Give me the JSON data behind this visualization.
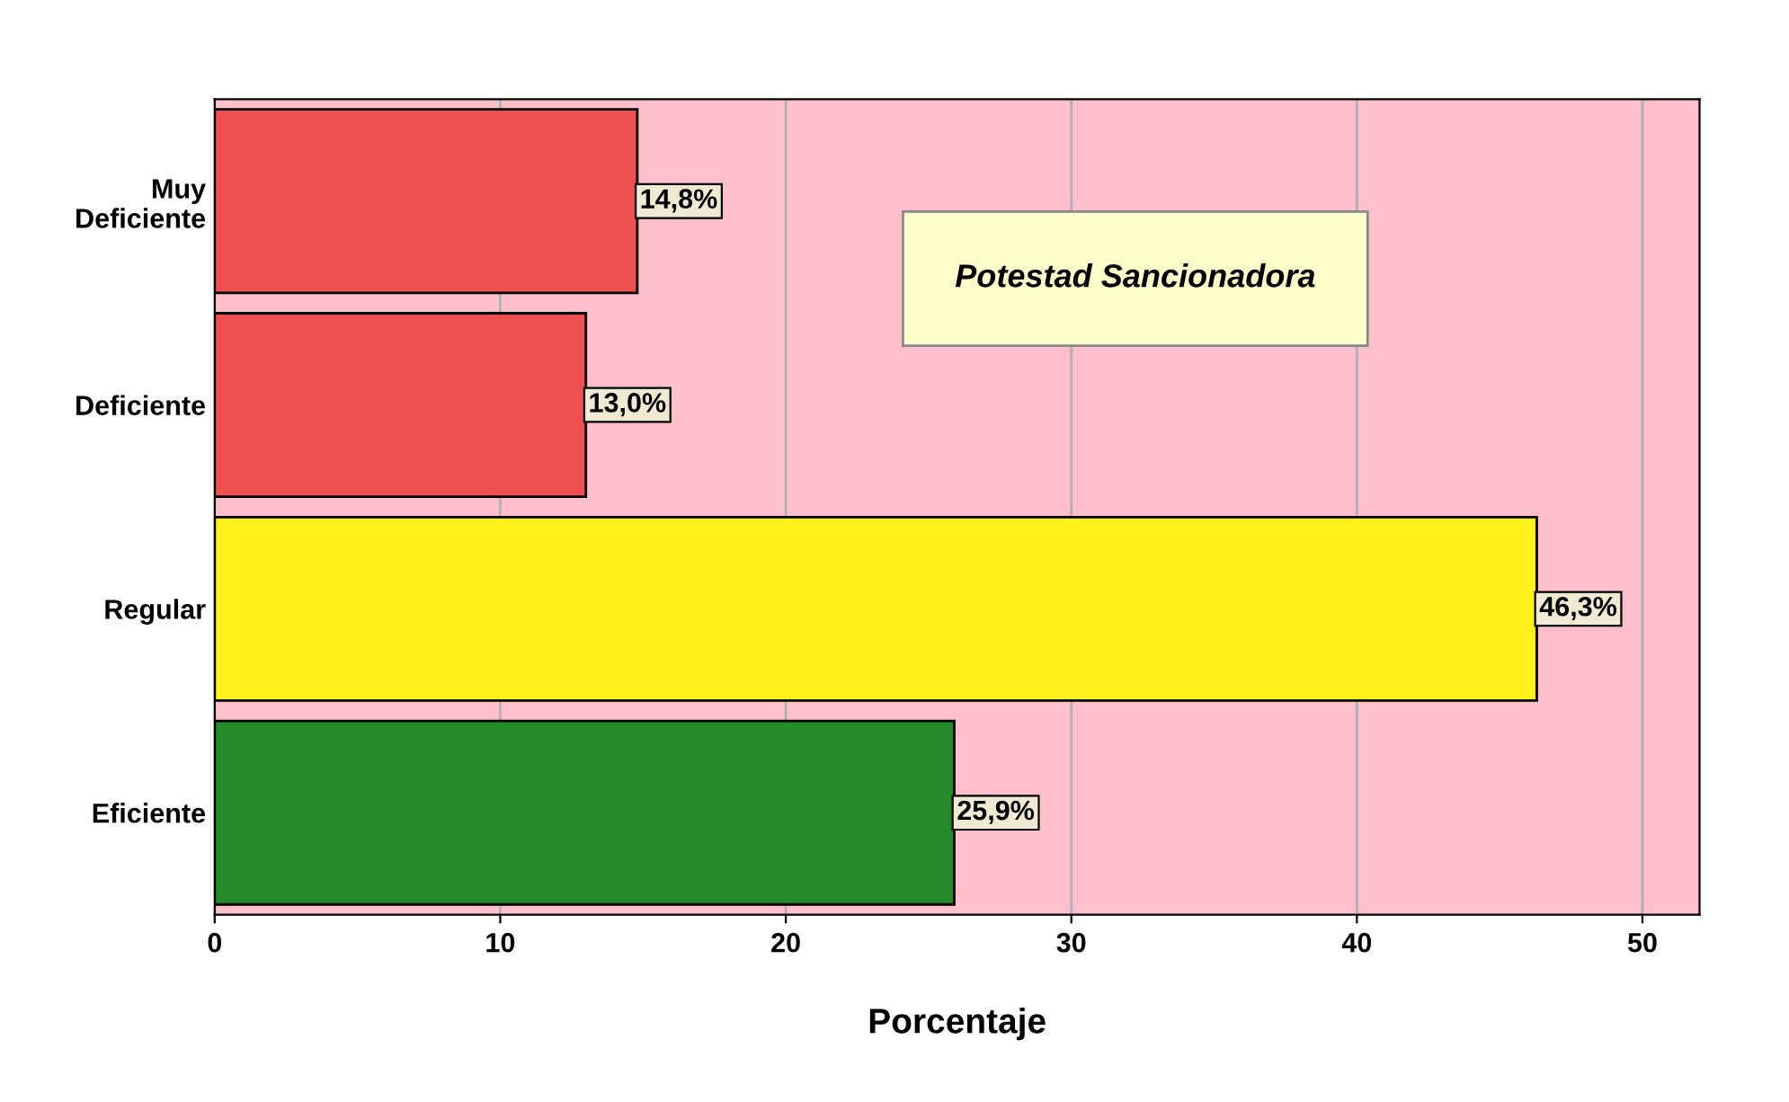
{
  "chart_data": {
    "type": "bar",
    "orientation": "horizontal",
    "xlabel": "Porcentaje",
    "categories": [
      "Muy\nDeficiente",
      "Deficiente",
      "Regular",
      "Eficiente"
    ],
    "values": [
      14.8,
      13.0,
      46.3,
      25.9
    ],
    "colors": [
      "#ee4f4f",
      "#ee4f4f",
      "#ffef1a",
      "#278a2a"
    ],
    "value_labels": [
      "14,8%",
      "13,0%",
      "46,3%",
      "25,9%"
    ],
    "xlim": [
      0,
      52
    ],
    "xticks": [
      0,
      10,
      20,
      30,
      40,
      50
    ],
    "grid": "x",
    "annotations": [
      "Potestad Sancionadora"
    ]
  }
}
